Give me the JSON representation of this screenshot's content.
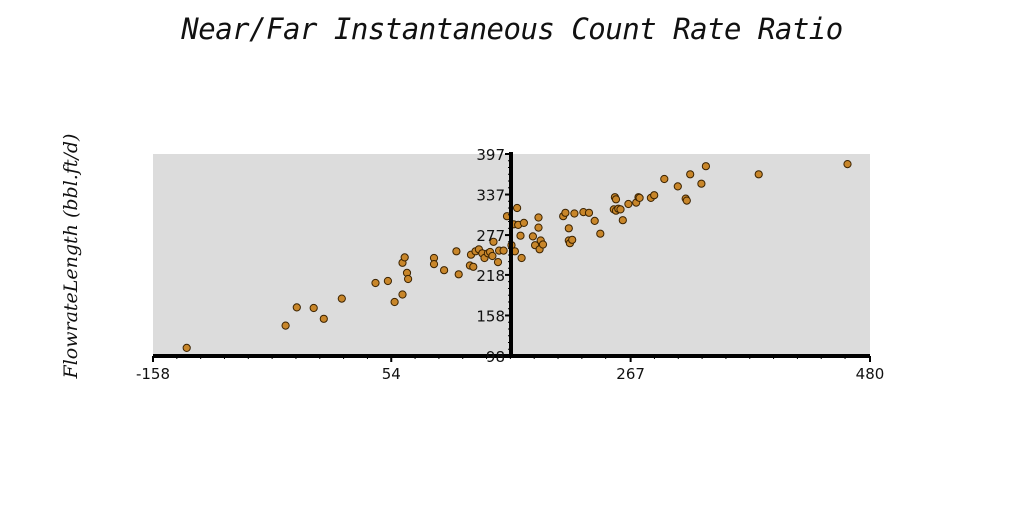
{
  "chart_data": {
    "type": "scatter",
    "title": "Near/Far Instantaneous Count Rate Ratio",
    "xlabel": "",
    "ylabel": "FlowrateLength (bbl.ft/d)",
    "xlim": [
      -158,
      480
    ],
    "ylim": [
      98,
      397
    ],
    "x_ticks": [
      "-158",
      "54",
      "267",
      "480"
    ],
    "y_ticks": [
      "397",
      "337",
      "277",
      "218",
      "158",
      "98"
    ],
    "grid": false,
    "legend": "none",
    "colors": {
      "plot_background": "#dcdcdc",
      "marker_fill": "#c8862a",
      "marker_edge": "#3a2200",
      "axis": "#000000"
    },
    "points": [
      [
        -128,
        110
      ],
      [
        -40,
        143
      ],
      [
        -30,
        170
      ],
      [
        -15,
        169
      ],
      [
        -6,
        153
      ],
      [
        10,
        183
      ],
      [
        40,
        206
      ],
      [
        51,
        209
      ],
      [
        57,
        178
      ],
      [
        64,
        189
      ],
      [
        64,
        236
      ],
      [
        66,
        244
      ],
      [
        68,
        221
      ],
      [
        69,
        212
      ],
      [
        92,
        243
      ],
      [
        92,
        234
      ],
      [
        101,
        225
      ],
      [
        112,
        253
      ],
      [
        114,
        219
      ],
      [
        124,
        232
      ],
      [
        125,
        248
      ],
      [
        127,
        230
      ],
      [
        129,
        253
      ],
      [
        132,
        256
      ],
      [
        135,
        250
      ],
      [
        137,
        243
      ],
      [
        140,
        250
      ],
      [
        142,
        252
      ],
      [
        144,
        246
      ],
      [
        145,
        267
      ],
      [
        149,
        237
      ],
      [
        150,
        254
      ],
      [
        154,
        254
      ],
      [
        157,
        305
      ],
      [
        161,
        262
      ],
      [
        163,
        293
      ],
      [
        164,
        253
      ],
      [
        166,
        317
      ],
      [
        167,
        292
      ],
      [
        169,
        276
      ],
      [
        170,
        243
      ],
      [
        172,
        295
      ],
      [
        180,
        275
      ],
      [
        182,
        262
      ],
      [
        185,
        288
      ],
      [
        185,
        303
      ],
      [
        186,
        256
      ],
      [
        187,
        269
      ],
      [
        189,
        263
      ],
      [
        207,
        305
      ],
      [
        209,
        310
      ],
      [
        212,
        287
      ],
      [
        212,
        269
      ],
      [
        213,
        265
      ],
      [
        215,
        270
      ],
      [
        217,
        309
      ],
      [
        225,
        311
      ],
      [
        230,
        310
      ],
      [
        235,
        298
      ],
      [
        240,
        279
      ],
      [
        252,
        315
      ],
      [
        253,
        333
      ],
      [
        254,
        330
      ],
      [
        254,
        313
      ],
      [
        256,
        316
      ],
      [
        258,
        315
      ],
      [
        260,
        299
      ],
      [
        265,
        323
      ],
      [
        272,
        325
      ],
      [
        274,
        333
      ],
      [
        275,
        332
      ],
      [
        285,
        332
      ],
      [
        288,
        336
      ],
      [
        297,
        360
      ],
      [
        309,
        349
      ],
      [
        316,
        331
      ],
      [
        317,
        328
      ],
      [
        320,
        367
      ],
      [
        330,
        353
      ],
      [
        334,
        379
      ],
      [
        381,
        367
      ],
      [
        460,
        382
      ]
    ]
  }
}
